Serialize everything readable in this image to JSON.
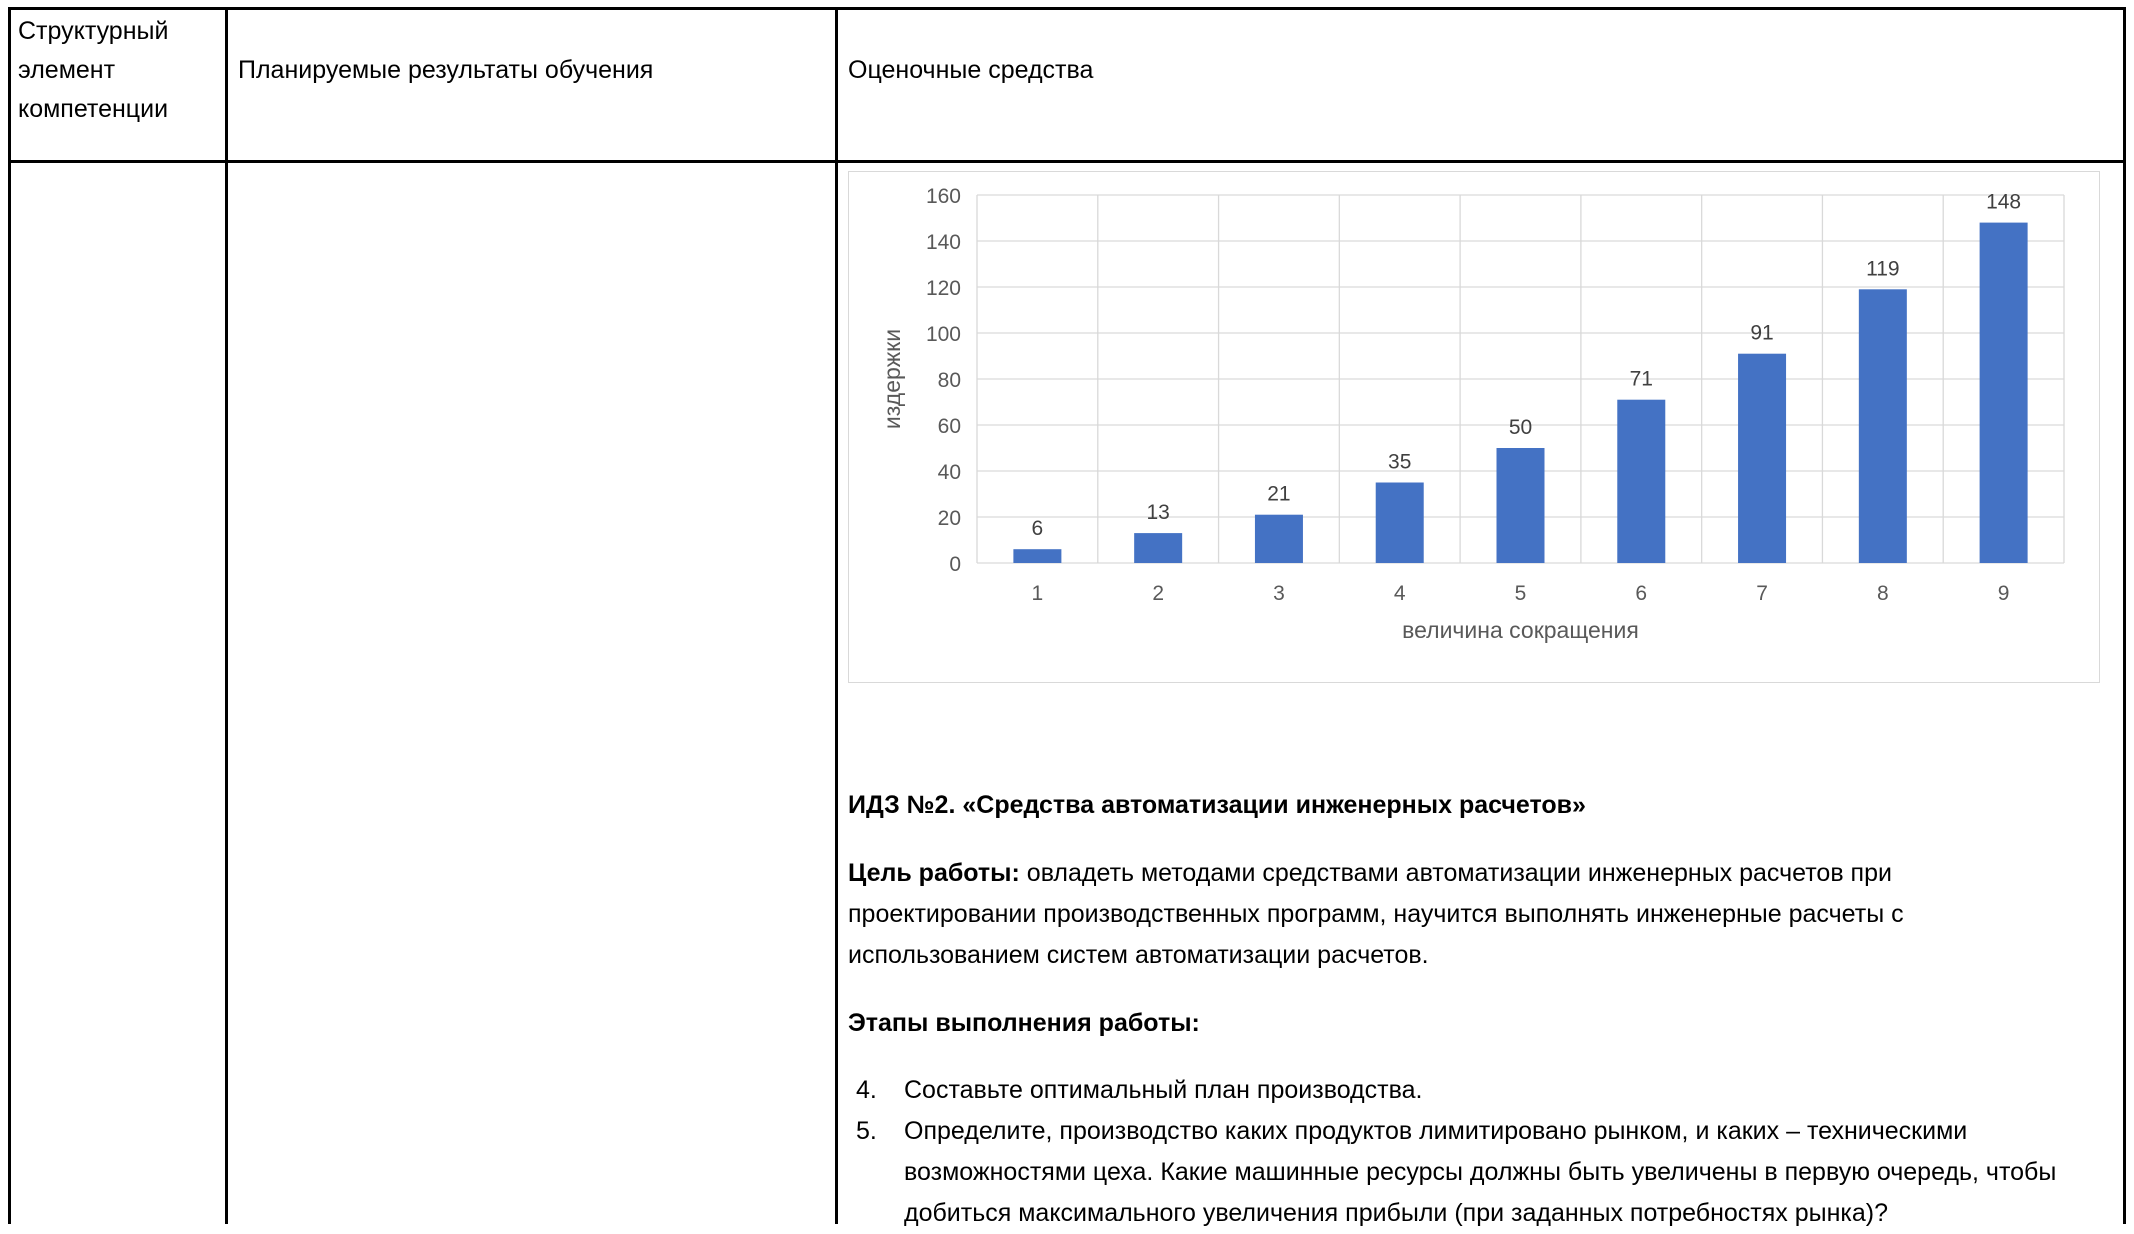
{
  "table": {
    "headers": [
      "Структурный элемент компетенции",
      "Планируемые результаты обучения",
      "Оценочные средства"
    ]
  },
  "chart_data": {
    "type": "bar",
    "categories": [
      "1",
      "2",
      "3",
      "4",
      "5",
      "6",
      "7",
      "8",
      "9"
    ],
    "values": [
      6,
      13,
      21,
      35,
      50,
      71,
      91,
      119,
      148
    ],
    "xlabel": "величина сокращения",
    "ylabel": "издержки",
    "ylim": [
      0,
      160
    ],
    "yticks": [
      0,
      20,
      40,
      60,
      80,
      100,
      120,
      140,
      160
    ],
    "grid": true,
    "bar_color": "#4472c4",
    "data_labels": true
  },
  "task": {
    "title": "ИДЗ №2. «Средства автоматизации инженерных расчетов»",
    "goal_label": "Цель работы:",
    "goal_text": " овладеть методами средствами автоматизации инженерных расчетов при проектировании производственных программ, научится выполнять инженерные расчеты с использованием систем автоматизации расчетов.",
    "stages_label": "Этапы выполнения работы:",
    "steps": [
      {
        "num": "4.",
        "text": "Составьте оптимальный план производства."
      },
      {
        "num": "5.",
        "text": "Определите, производство каких продуктов лимитировано рынком, и каких – техническими возможностями цеха. Какие машинные ресурсы должны быть увеличены в первую очередь, чтобы добиться максимального увеличения прибыли (при заданных потребностях рынка)?"
      }
    ]
  }
}
